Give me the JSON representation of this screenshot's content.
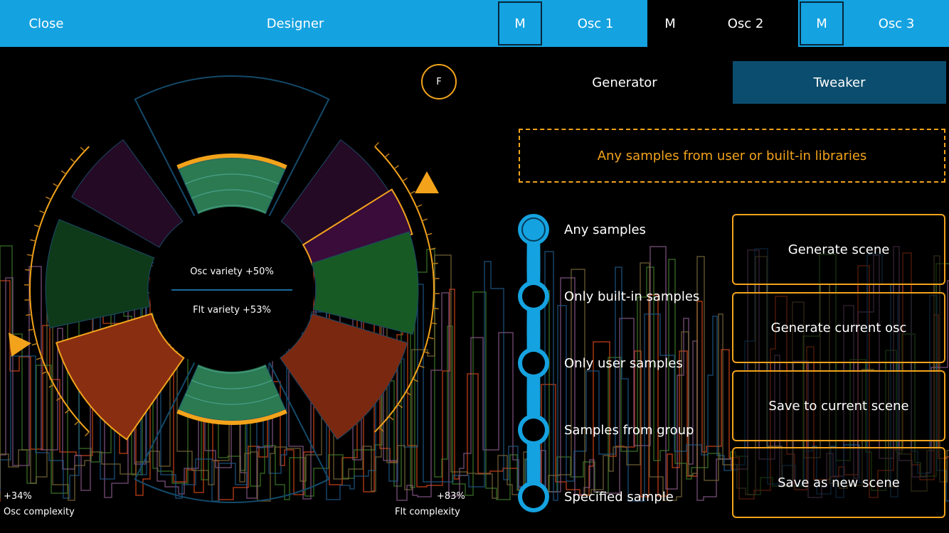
{
  "topbar": {
    "close": "Close",
    "designer": "Designer",
    "mute1": "M",
    "osc1": "Osc 1",
    "mute2": "M",
    "osc2": "Osc 2",
    "mute3": "M",
    "osc3": "Osc 3",
    "active_osc": "Osc 2"
  },
  "wheel": {
    "osc_variety": "Osc variety +50%",
    "flt_variety": "Flt variety +53%",
    "f_button": "F",
    "osc_complexity_value": "+34%",
    "osc_complexity_label": "Osc complexity",
    "flt_complexity_value": "+83%",
    "flt_complexity_label": "Flt complexity"
  },
  "tabs": {
    "generator": "Generator",
    "tweaker": "Tweaker",
    "active": "Tweaker"
  },
  "info": "Any samples from user or built-in libraries",
  "sample_source": {
    "options": [
      "Any samples",
      "Only built-in samples",
      "Only user samples",
      "Samples from group",
      "Specified sample"
    ],
    "selected": "Any samples"
  },
  "actions": {
    "generate_scene": "Generate scene",
    "generate_osc": "Generate current osc",
    "save_current": "Save to current scene",
    "save_new": "Save as new scene"
  },
  "colors": {
    "accent_blue": "#15a2e0",
    "accent_orange": "#f2a31b",
    "tab_active": "#0b4d6e"
  }
}
